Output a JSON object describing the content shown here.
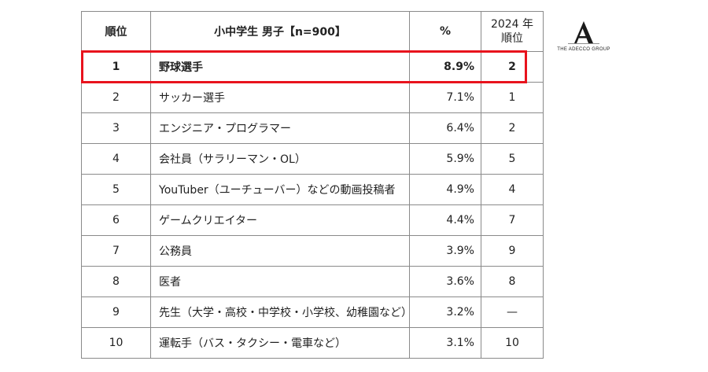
{
  "header": {
    "rank": "順位",
    "category": "小中学生 男子【n=900】",
    "pct": "%",
    "year_line1": "2024 年",
    "year_line2": "順位"
  },
  "rows": [
    {
      "rank": "1",
      "name": "野球選手",
      "pct": "8.9%",
      "prev": "2"
    },
    {
      "rank": "2",
      "name": "サッカー選手",
      "pct": "7.1%",
      "prev": "1"
    },
    {
      "rank": "3",
      "name": "エンジニア・プログラマー",
      "pct": "6.4%",
      "prev": "2"
    },
    {
      "rank": "4",
      "name": "会社員（サラリーマン・OL）",
      "pct": "5.9%",
      "prev": "5"
    },
    {
      "rank": "5",
      "name": "YouTuber（ユーチューバー）などの動画投稿者",
      "pct": "4.9%",
      "prev": "4"
    },
    {
      "rank": "6",
      "name": "ゲームクリエイター",
      "pct": "4.4%",
      "prev": "7"
    },
    {
      "rank": "7",
      "name": "公務員",
      "pct": "3.9%",
      "prev": "9"
    },
    {
      "rank": "8",
      "name": "医者",
      "pct": "3.6%",
      "prev": "8"
    },
    {
      "rank": "9",
      "name": "先生（大学・高校・中学校・小学校、幼稚園など）",
      "pct": "3.2%",
      "prev": "—"
    },
    {
      "rank": "10",
      "name": "運転手（バス・タクシー・電車など）",
      "pct": "3.1%",
      "prev": "10"
    }
  ],
  "highlight_color": "#e8131d",
  "logo": {
    "icon": "adecco-a-logo-icon",
    "text": "THE ADECCO GROUP"
  }
}
